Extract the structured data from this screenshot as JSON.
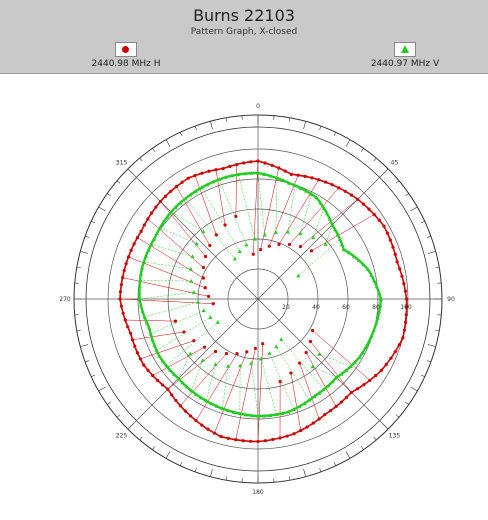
{
  "header": {
    "title": "Burns 22103",
    "subtitle": "Pattern Graph, X-closed"
  },
  "legend": [
    {
      "label": "2440.98 MHz H",
      "color": "#d00000",
      "marker": "circle"
    },
    {
      "label": "2440.97 MHz V",
      "color": "#22cc22",
      "marker": "triangle"
    }
  ],
  "chart_data": {
    "type": "polar",
    "title": "Burns 22103",
    "subtitle": "Pattern Graph, X-closed",
    "radial_ticks": [
      20,
      40,
      60,
      80,
      100
    ],
    "radial_range": [
      0,
      100
    ],
    "angle_labels": [
      {
        "angle": 0,
        "text": "0"
      },
      {
        "angle": 45,
        "text": "45"
      },
      {
        "angle": 90,
        "text": "90"
      },
      {
        "angle": 135,
        "text": "135"
      },
      {
        "angle": 180,
        "text": "180"
      },
      {
        "angle": 225,
        "text": "225"
      },
      {
        "angle": 270,
        "text": "270"
      },
      {
        "angle": 315,
        "text": "315"
      }
    ],
    "grid": true,
    "series": [
      {
        "name": "2440.98 MHz H",
        "color": "#d00000",
        "marker": "circle",
        "angles": [
          0,
          15,
          30,
          45,
          60,
          75,
          90,
          105,
          120,
          135,
          150,
          165,
          180,
          195,
          210,
          225,
          240,
          255,
          270,
          285,
          300,
          315,
          330,
          345,
          360
        ],
        "values": [
          92,
          86,
          90,
          94,
          97,
          96,
          99,
          100,
          95,
          88,
          89,
          93,
          95,
          95,
          90,
          85,
          88,
          88,
          92,
          91,
          90,
          92,
          93,
          90,
          92
        ]
      },
      {
        "name": "2440.97 MHz V",
        "color": "#22cc22",
        "marker": "triangle",
        "angles": [
          0,
          15,
          30,
          45,
          60,
          75,
          90,
          105,
          120,
          135,
          150,
          165,
          180,
          195,
          210,
          225,
          240,
          255,
          270,
          285,
          300,
          315,
          330,
          345,
          360
        ],
        "values": [
          84,
          80,
          78,
          70,
          66,
          76,
          82,
          80,
          78,
          74,
          75,
          78,
          78,
          77,
          76,
          75,
          76,
          75,
          79,
          80,
          80,
          82,
          83,
          84,
          84
        ]
      }
    ]
  }
}
